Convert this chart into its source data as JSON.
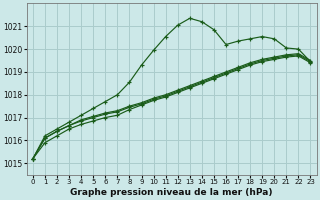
{
  "title": "Graphe pression niveau de la mer (hPa)",
  "bg_color": "#cce8e8",
  "grid_color": "#aacccc",
  "line_color": "#1a5c1a",
  "xlim": [
    -0.5,
    23.5
  ],
  "ylim": [
    1014.5,
    1022.0
  ],
  "yticks": [
    1015,
    1016,
    1017,
    1018,
    1019,
    1020,
    1021
  ],
  "xticks": [
    0,
    1,
    2,
    3,
    4,
    5,
    6,
    7,
    8,
    9,
    10,
    11,
    12,
    13,
    14,
    15,
    16,
    17,
    18,
    19,
    20,
    21,
    22,
    23
  ],
  "series": [
    [
      1015.2,
      1015.9,
      1016.2,
      1016.5,
      1016.7,
      1016.85,
      1017.0,
      1017.1,
      1017.35,
      1017.55,
      1017.75,
      1017.9,
      1018.1,
      1018.3,
      1018.5,
      1018.7,
      1018.9,
      1019.1,
      1019.3,
      1019.45,
      1019.55,
      1019.65,
      1019.7,
      1019.4
    ],
    [
      1015.2,
      1016.1,
      1016.4,
      1016.65,
      1016.85,
      1017.0,
      1017.15,
      1017.25,
      1017.45,
      1017.6,
      1017.8,
      1017.95,
      1018.15,
      1018.35,
      1018.55,
      1018.75,
      1018.95,
      1019.15,
      1019.35,
      1019.5,
      1019.6,
      1019.7,
      1019.75,
      1019.45
    ],
    [
      1015.2,
      1016.1,
      1016.4,
      1016.65,
      1016.9,
      1017.05,
      1017.2,
      1017.3,
      1017.5,
      1017.65,
      1017.85,
      1018.0,
      1018.2,
      1018.4,
      1018.6,
      1018.8,
      1019.0,
      1019.2,
      1019.4,
      1019.55,
      1019.65,
      1019.75,
      1019.8,
      1019.5
    ],
    [
      1015.2,
      1016.2,
      1016.5,
      1016.8,
      1017.1,
      1017.4,
      1017.7,
      1018.0,
      1018.55,
      1019.3,
      1019.95,
      1020.55,
      1021.05,
      1021.35,
      1021.2,
      1020.85,
      1020.2,
      1020.35,
      1020.45,
      1020.55,
      1020.45,
      1020.05,
      1020.0,
      1019.45
    ]
  ]
}
